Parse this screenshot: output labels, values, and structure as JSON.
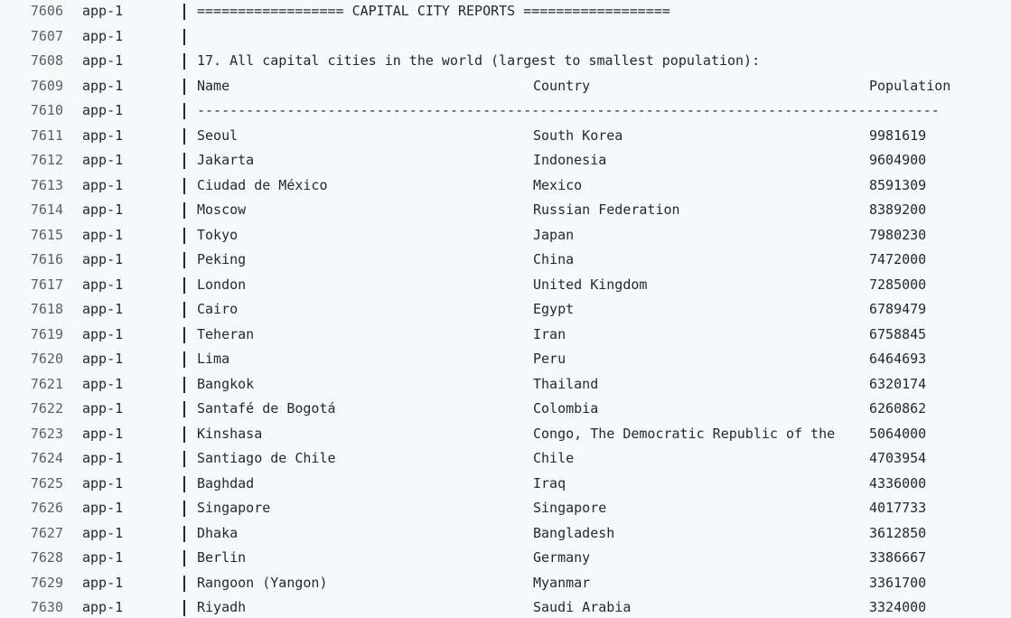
{
  "log": {
    "lines": [
      {
        "n": "7606",
        "svc": "app-1",
        "kind": "msg",
        "text": "================== CAPITAL CITY REPORTS =================="
      },
      {
        "n": "7607",
        "svc": "app-1",
        "kind": "msg",
        "text": ""
      },
      {
        "n": "7608",
        "svc": "app-1",
        "kind": "msg",
        "text": "17. All capital cities in the world (largest to smallest population):"
      },
      {
        "n": "7609",
        "svc": "app-1",
        "kind": "row",
        "cols": [
          "Name",
          "Country",
          "Population"
        ]
      },
      {
        "n": "7610",
        "svc": "app-1",
        "kind": "msg",
        "text": "-------------------------------------------------------------------------------------------"
      },
      {
        "n": "7611",
        "svc": "app-1",
        "kind": "row",
        "cols": [
          "Seoul",
          "South Korea",
          "9981619"
        ]
      },
      {
        "n": "7612",
        "svc": "app-1",
        "kind": "row",
        "cols": [
          "Jakarta",
          "Indonesia",
          "9604900"
        ]
      },
      {
        "n": "7613",
        "svc": "app-1",
        "kind": "row",
        "cols": [
          "Ciudad de México",
          "Mexico",
          "8591309"
        ]
      },
      {
        "n": "7614",
        "svc": "app-1",
        "kind": "row",
        "cols": [
          "Moscow",
          "Russian Federation",
          "8389200"
        ]
      },
      {
        "n": "7615",
        "svc": "app-1",
        "kind": "row",
        "cols": [
          "Tokyo",
          "Japan",
          "7980230"
        ]
      },
      {
        "n": "7616",
        "svc": "app-1",
        "kind": "row",
        "cols": [
          "Peking",
          "China",
          "7472000"
        ]
      },
      {
        "n": "7617",
        "svc": "app-1",
        "kind": "row",
        "cols": [
          "London",
          "United Kingdom",
          "7285000"
        ]
      },
      {
        "n": "7618",
        "svc": "app-1",
        "kind": "row",
        "cols": [
          "Cairo",
          "Egypt",
          "6789479"
        ]
      },
      {
        "n": "7619",
        "svc": "app-1",
        "kind": "row",
        "cols": [
          "Teheran",
          "Iran",
          "6758845"
        ]
      },
      {
        "n": "7620",
        "svc": "app-1",
        "kind": "row",
        "cols": [
          "Lima",
          "Peru",
          "6464693"
        ]
      },
      {
        "n": "7621",
        "svc": "app-1",
        "kind": "row",
        "cols": [
          "Bangkok",
          "Thailand",
          "6320174"
        ]
      },
      {
        "n": "7622",
        "svc": "app-1",
        "kind": "row",
        "cols": [
          "Santafé de Bogotá",
          "Colombia",
          "6260862"
        ]
      },
      {
        "n": "7623",
        "svc": "app-1",
        "kind": "row",
        "cols": [
          "Kinshasa",
          "Congo, The Democratic Republic of the",
          "5064000"
        ]
      },
      {
        "n": "7624",
        "svc": "app-1",
        "kind": "row",
        "cols": [
          "Santiago de Chile",
          "Chile",
          "4703954"
        ]
      },
      {
        "n": "7625",
        "svc": "app-1",
        "kind": "row",
        "cols": [
          "Baghdad",
          "Iraq",
          "4336000"
        ]
      },
      {
        "n": "7626",
        "svc": "app-1",
        "kind": "row",
        "cols": [
          "Singapore",
          "Singapore",
          "4017733"
        ]
      },
      {
        "n": "7627",
        "svc": "app-1",
        "kind": "row",
        "cols": [
          "Dhaka",
          "Bangladesh",
          "3612850"
        ]
      },
      {
        "n": "7628",
        "svc": "app-1",
        "kind": "row",
        "cols": [
          "Berlin",
          "Germany",
          "3386667"
        ]
      },
      {
        "n": "7629",
        "svc": "app-1",
        "kind": "row",
        "cols": [
          "Rangoon (Yangon)",
          "Myanmar",
          "3361700"
        ]
      },
      {
        "n": "7630",
        "svc": "app-1",
        "kind": "row",
        "cols": [
          "Riyadh",
          "Saudi Arabia",
          "3324000"
        ]
      }
    ]
  }
}
